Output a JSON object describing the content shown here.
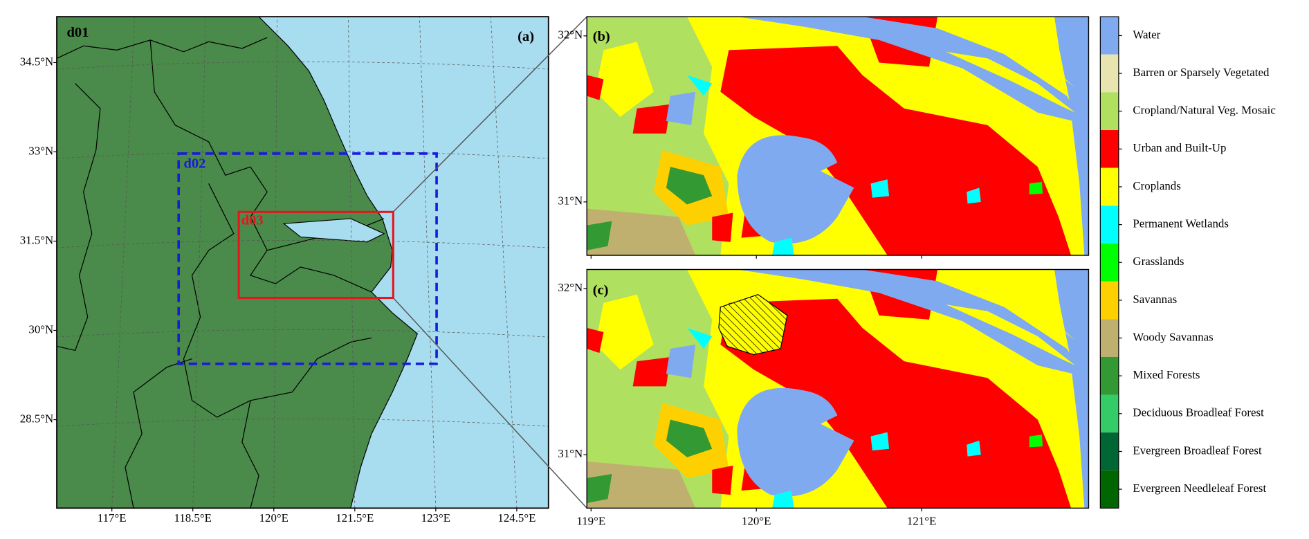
{
  "panels": {
    "a": {
      "label": "(a)",
      "domains": [
        "d01",
        "d02",
        "d03"
      ],
      "lat_ticks": [
        {
          "value": 34.5,
          "label": "34.5°N"
        },
        {
          "value": 33,
          "label": "33°N"
        },
        {
          "value": 31.5,
          "label": "31.5°N"
        },
        {
          "value": 30,
          "label": "30°N"
        },
        {
          "value": 28.5,
          "label": "28.5°N"
        }
      ],
      "lon_ticks": [
        {
          "value": 117,
          "label": "117°E"
        },
        {
          "value": 118.5,
          "label": "118.5°E"
        },
        {
          "value": 120,
          "label": "120°E"
        },
        {
          "value": 121.5,
          "label": "121.5°E"
        },
        {
          "value": 123,
          "label": "123°E"
        },
        {
          "value": 124.5,
          "label": "124.5°E"
        }
      ]
    },
    "b": {
      "label": "(b)",
      "lat_ticks": [
        {
          "value": 32,
          "label": "32°N"
        },
        {
          "value": 31,
          "label": "31°N"
        }
      ]
    },
    "c": {
      "label": "(c)",
      "lat_ticks": [
        {
          "value": 32,
          "label": "32°N"
        },
        {
          "value": 31,
          "label": "31°N"
        }
      ],
      "lon_ticks": [
        {
          "value": 119,
          "label": "119°E"
        },
        {
          "value": 120,
          "label": "120°E"
        },
        {
          "value": 121,
          "label": "121°E"
        }
      ]
    }
  },
  "legend": [
    {
      "name": "Water",
      "color": "#80aaf0"
    },
    {
      "name": "Barren or Sparsely Vegetated",
      "color": "#e8e4b0"
    },
    {
      "name": "Cropland/Natural Veg. Mosaic",
      "color": "#b0e060"
    },
    {
      "name": "Urban and Built-Up",
      "color": "#ff0000"
    },
    {
      "name": "Croplands",
      "color": "#ffff00"
    },
    {
      "name": "Permanent Wetlands",
      "color": "#00ffff"
    },
    {
      "name": "Grasslands",
      "color": "#00ff00"
    },
    {
      "name": "Savannas",
      "color": "#ffd000"
    },
    {
      "name": "Woody Savannas",
      "color": "#c0b070"
    },
    {
      "name": "Mixed Forests",
      "color": "#339933"
    },
    {
      "name": "Deciduous Broadleaf Forest",
      "color": "#33cc66"
    },
    {
      "name": "Evergreen Broadleaf Forest",
      "color": "#006633"
    },
    {
      "name": "Evergreen Needleleaf Forest",
      "color": "#006600"
    }
  ]
}
